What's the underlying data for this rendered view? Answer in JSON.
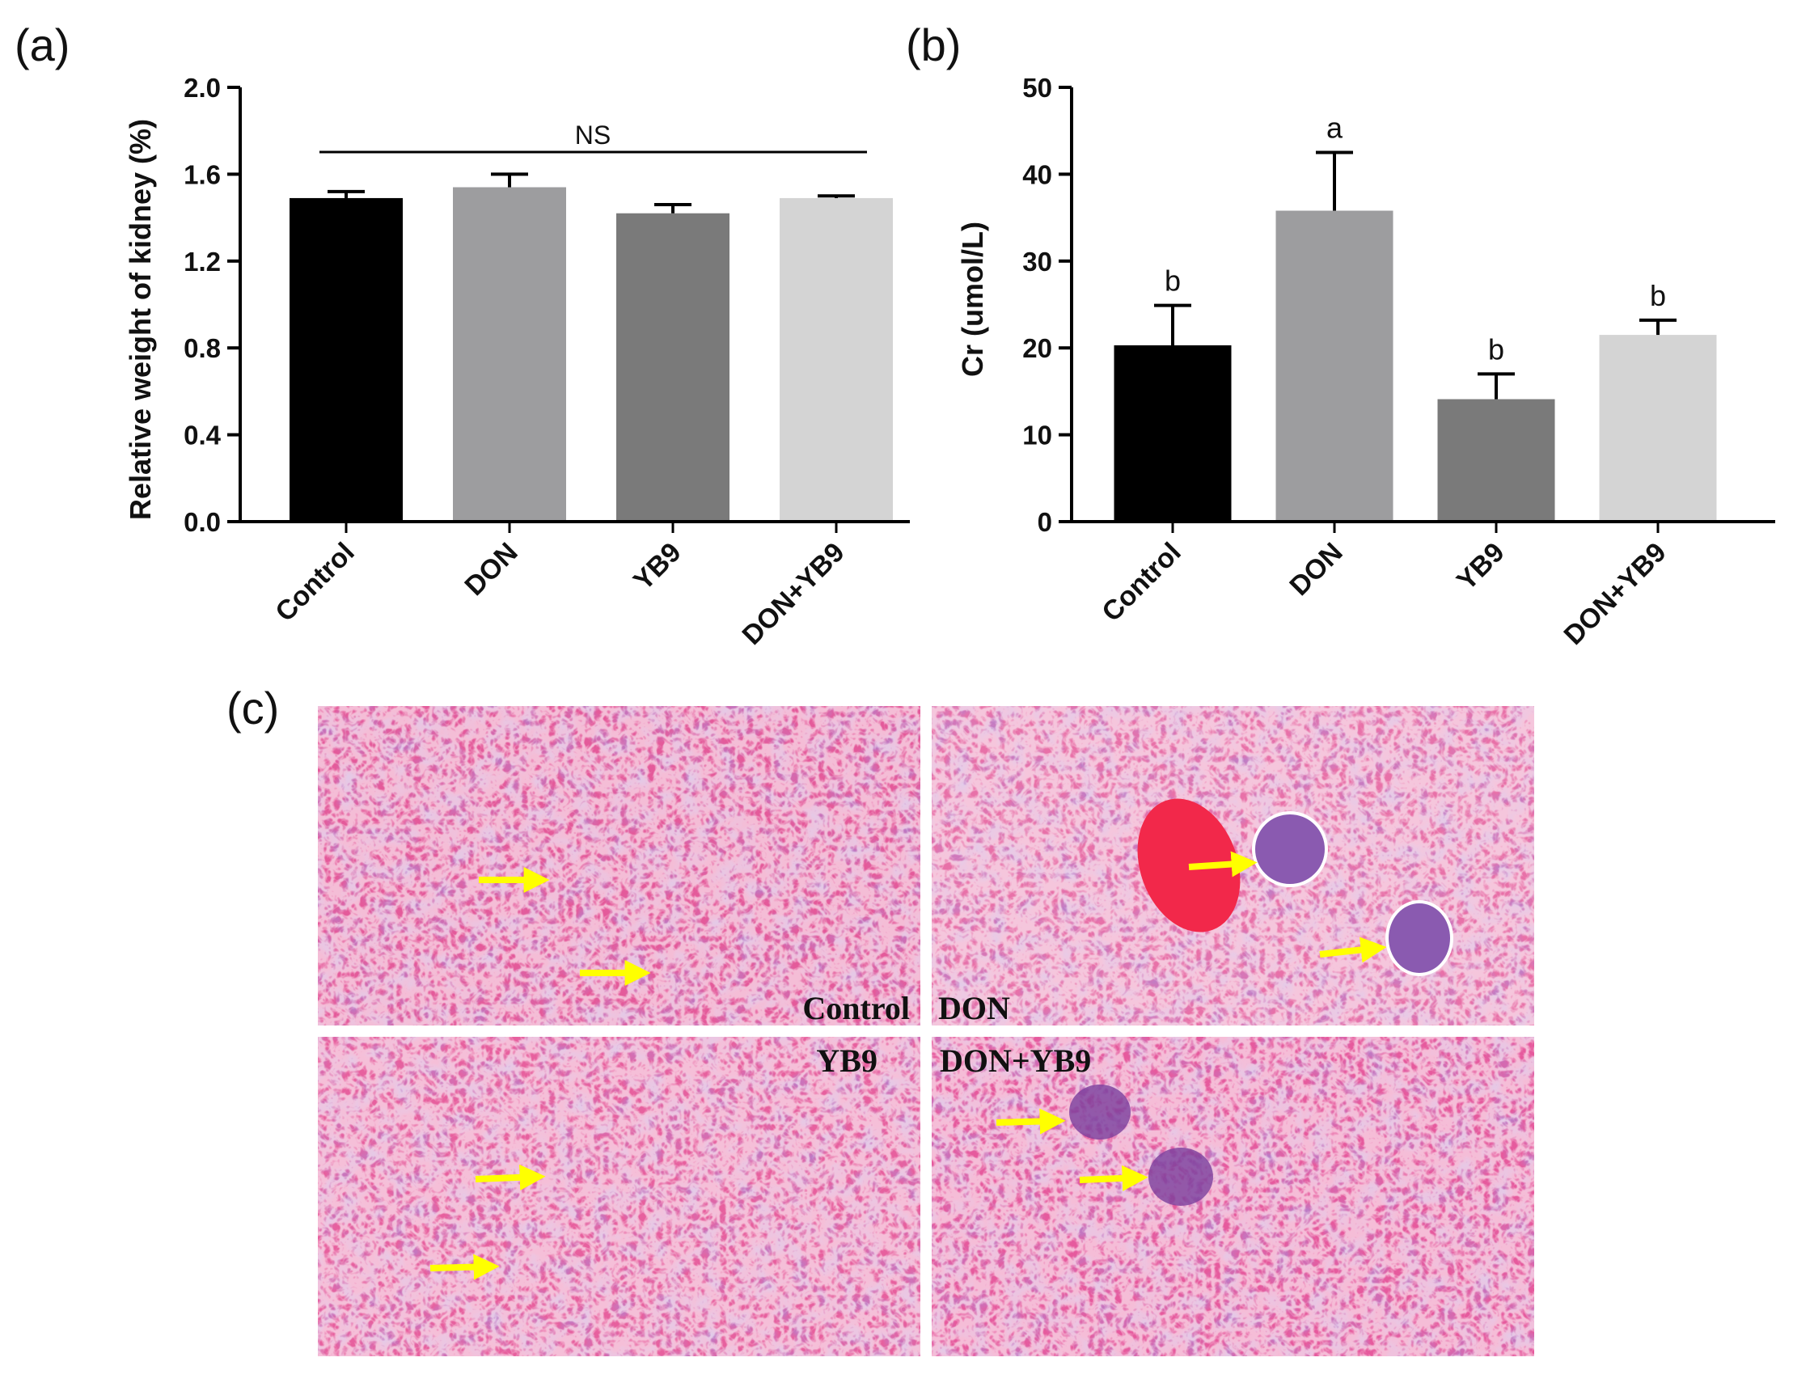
{
  "panels": {
    "a_label": "(a)",
    "b_label": "(b)",
    "c_label": "(c)"
  },
  "colors": {
    "Control": "#000000",
    "DON": "#9d9d9f",
    "YB9": "#7a7a7a",
    "DON+YB9": "#d4d4d4",
    "tissue_pink": "#ea5f9e",
    "tissue_purple": "#6b3f9a",
    "arrow": "#ffff00"
  },
  "chart_data": [
    {
      "id": "a",
      "type": "bar",
      "ylabel": "Relative weight of kidney (%)",
      "categories": [
        "Control",
        "DON",
        "YB9",
        "DON+YB9"
      ],
      "values": [
        1.49,
        1.54,
        1.42,
        1.49
      ],
      "errors": [
        0.03,
        0.06,
        0.04,
        0.01
      ],
      "ylim": [
        0,
        2.0
      ],
      "yticks": [
        "0.0",
        "0.4",
        "0.8",
        "1.2",
        "1.6",
        "2.0"
      ],
      "annotation": "NS",
      "grid": false
    },
    {
      "id": "b",
      "type": "bar",
      "ylabel": "Cr (umol/L)",
      "categories": [
        "Control",
        "DON",
        "YB9",
        "DON+YB9"
      ],
      "values": [
        20.3,
        35.8,
        14.1,
        21.5
      ],
      "errors": [
        4.6,
        6.7,
        2.9,
        1.7
      ],
      "significance": [
        "b",
        "a",
        "b",
        "b"
      ],
      "ylim": [
        0,
        50
      ],
      "yticks": [
        "0",
        "10",
        "20",
        "30",
        "40",
        "50"
      ],
      "grid": false
    }
  ],
  "histology": {
    "labels": {
      "control": "Control",
      "don": "DON",
      "yb9": "YB9",
      "don_yb9": "DON+YB9"
    }
  }
}
